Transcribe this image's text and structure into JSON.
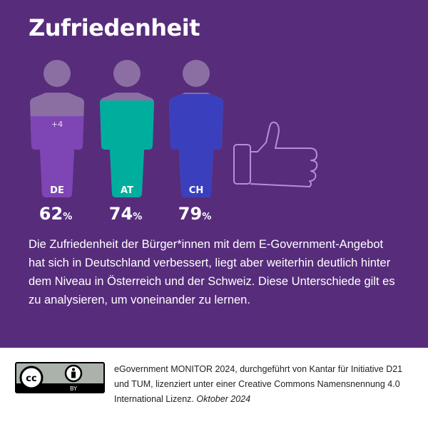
{
  "title": "Zufriedenheit",
  "chart_data": {
    "type": "bar",
    "categories": [
      "DE",
      "AT",
      "CH"
    ],
    "values": [
      62,
      74,
      79
    ],
    "unit": "%",
    "annotations": [
      {
        "category": "DE",
        "text": "+4"
      }
    ],
    "colors": {
      "DE": "#7e45b5",
      "AT": "#00ae9e",
      "CH": "#3a40bd",
      "empty": "#8b6fa3"
    }
  },
  "description": "Die Zufriedenheit der Bürger*innen mit dem E-Government-Angebot hat sich in Deutschland verbessert, liegt aber weiterhin deutlich hinter dem Niveau in Österreich und der Schweiz. Diese Unterschiede gilt es zu analysieren, um voneinander zu lernen.",
  "footer": {
    "text": "eGovernment MONITOR 2024, durchgeführt von Kantar für Initiative D21 und TUM, lizenziert unter einer Creative Commons Namensnennung 4.0 International Lizenz.",
    "date": "Oktober 2024",
    "license_badge": {
      "cc": "cc",
      "by": "BY"
    }
  },
  "icons": [
    "person-icon",
    "thumbs-up-icon",
    "cc-by-icon"
  ]
}
